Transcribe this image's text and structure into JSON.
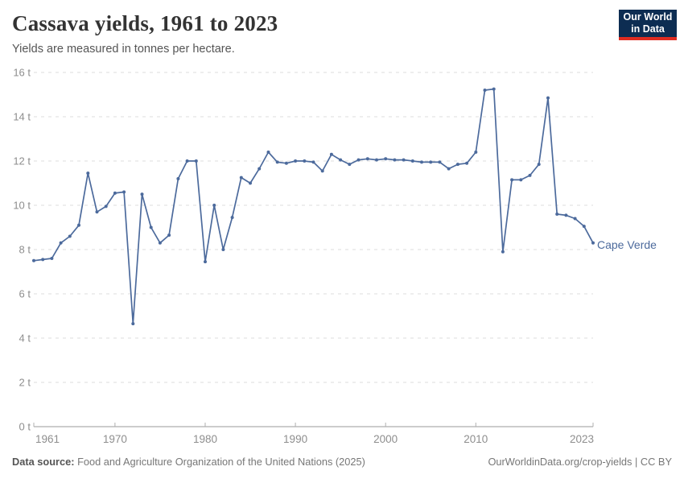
{
  "header": {
    "title": "Cassava yields, 1961 to 2023",
    "subtitle": "Yields are measured in tonnes per hectare."
  },
  "logo": {
    "line1": "Our World",
    "line2": "in Data",
    "bg_color": "#0d2d52",
    "accent_color": "#e02c21"
  },
  "chart_data": {
    "type": "line",
    "title": "Cassava yields, 1961 to 2023",
    "subtitle": "Yields are measured in tonnes per hectare.",
    "unit": "tonnes per hectare",
    "xlim": [
      1961,
      2023
    ],
    "ylim": [
      0,
      16
    ],
    "grid": "horizontal-dashed",
    "legend_position": "end-of-line-label",
    "y_ticks": [
      0,
      2,
      4,
      6,
      8,
      10,
      12,
      14,
      16
    ],
    "y_tick_suffix": " t",
    "x_ticks": [
      1961,
      1970,
      1980,
      1990,
      2000,
      2010,
      2023
    ],
    "x": [
      1961,
      1962,
      1963,
      1964,
      1965,
      1966,
      1967,
      1968,
      1969,
      1970,
      1971,
      1972,
      1973,
      1974,
      1975,
      1976,
      1977,
      1978,
      1979,
      1980,
      1981,
      1982,
      1983,
      1984,
      1985,
      1986,
      1987,
      1988,
      1989,
      1990,
      1991,
      1992,
      1993,
      1994,
      1995,
      1996,
      1997,
      1998,
      1999,
      2000,
      2001,
      2002,
      2003,
      2004,
      2005,
      2006,
      2007,
      2008,
      2009,
      2010,
      2011,
      2012,
      2013,
      2014,
      2015,
      2016,
      2017,
      2018,
      2019,
      2020,
      2021,
      2022,
      2023
    ],
    "series": [
      {
        "name": "Cape Verde",
        "color": "#4c6a9c",
        "values": [
          7.5,
          7.55,
          7.6,
          8.3,
          8.6,
          9.1,
          11.45,
          9.7,
          9.95,
          10.55,
          10.6,
          4.65,
          10.5,
          9.0,
          8.3,
          8.65,
          11.2,
          12.0,
          12.0,
          7.45,
          10.0,
          8.0,
          9.45,
          11.25,
          11.0,
          11.65,
          12.4,
          11.95,
          11.9,
          12.0,
          12.0,
          11.95,
          11.55,
          12.3,
          12.05,
          11.85,
          12.05,
          12.1,
          12.05,
          12.1,
          12.05,
          12.05,
          12.0,
          11.95,
          11.95,
          11.95,
          11.65,
          11.85,
          11.9,
          12.4,
          15.2,
          15.25,
          7.9,
          11.15,
          11.15,
          11.35,
          11.85,
          14.85,
          9.6,
          9.55,
          9.4,
          9.05,
          8.3
        ]
      }
    ]
  },
  "axis_style": {
    "tick_label_color": "#8e8e8e",
    "gridline_color": "#dddddd",
    "axis_line_color": "#999999"
  },
  "footer": {
    "source_label": "Data source:",
    "source_text": " Food and Agriculture Organization of the United Nations (2025)",
    "rights": "OurWorldinData.org/crop-yields | CC BY"
  }
}
